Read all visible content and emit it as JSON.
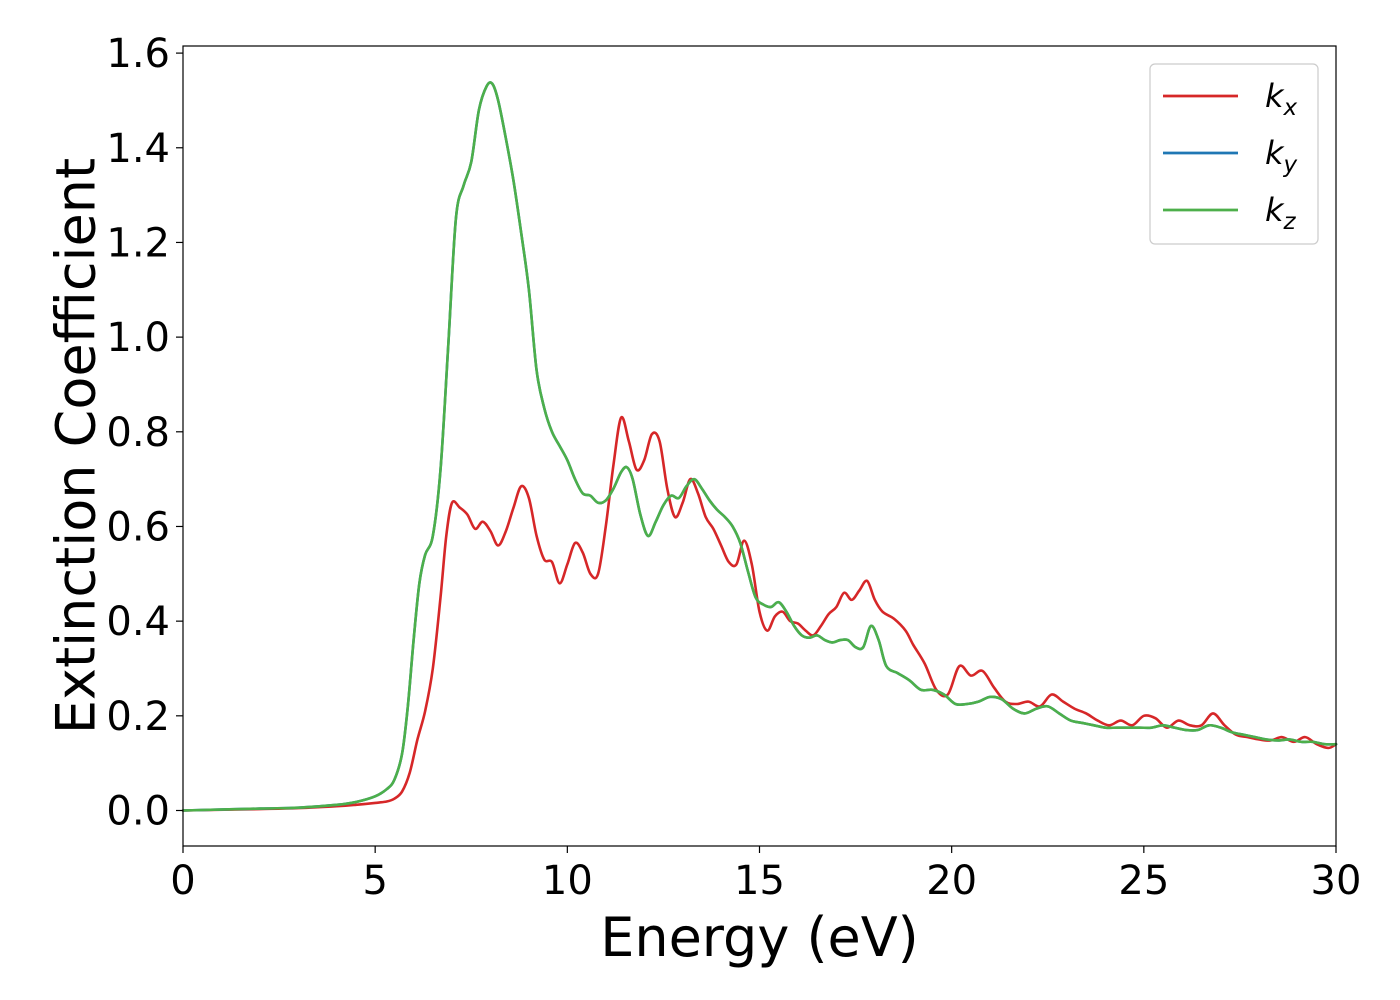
{
  "chart_data": {
    "type": "line",
    "title": "",
    "xlabel": "Energy (eV)",
    "ylabel": "Extinction Coefficient",
    "xlim": [
      0,
      30
    ],
    "ylim": [
      -0.075,
      1.615
    ],
    "xticks": [
      0,
      5,
      10,
      15,
      20,
      25,
      30
    ],
    "xtick_labels": [
      "0",
      "5",
      "10",
      "15",
      "20",
      "25",
      "30"
    ],
    "yticks": [
      0.0,
      0.2,
      0.4,
      0.6,
      0.8,
      1.0,
      1.2,
      1.4,
      1.6
    ],
    "ytick_labels": [
      "0.0",
      "0.2",
      "0.4",
      "0.6",
      "0.8",
      "1.0",
      "1.2",
      "1.4",
      "1.6"
    ],
    "grid": false,
    "legend_position": "top-right",
    "series": [
      {
        "name": "k_x",
        "label_base": "k",
        "label_sub": "x",
        "color": "#d62728",
        "x": [
          0,
          2,
          3,
          4,
          4.5,
          5,
          5.3,
          5.5,
          5.7,
          5.9,
          6.1,
          6.3,
          6.5,
          6.7,
          6.85,
          7.0,
          7.2,
          7.4,
          7.6,
          7.8,
          8.0,
          8.2,
          8.4,
          8.6,
          8.8,
          9.0,
          9.2,
          9.4,
          9.6,
          9.8,
          10.0,
          10.2,
          10.4,
          10.6,
          10.8,
          11.0,
          11.2,
          11.4,
          11.6,
          11.8,
          12.0,
          12.2,
          12.4,
          12.6,
          12.8,
          13.0,
          13.2,
          13.4,
          13.6,
          13.8,
          14.0,
          14.2,
          14.4,
          14.6,
          14.8,
          15.0,
          15.2,
          15.4,
          15.6,
          15.8,
          16.0,
          16.2,
          16.4,
          16.6,
          16.8,
          17.0,
          17.2,
          17.4,
          17.6,
          17.8,
          18.0,
          18.2,
          18.5,
          18.8,
          19.0,
          19.3,
          19.6,
          19.9,
          20.2,
          20.5,
          20.8,
          21.1,
          21.4,
          21.7,
          22.0,
          22.3,
          22.6,
          22.9,
          23.2,
          23.5,
          23.8,
          24.1,
          24.4,
          24.7,
          25.0,
          25.3,
          25.6,
          25.9,
          26.2,
          26.5,
          26.8,
          27.1,
          27.4,
          27.7,
          28.0,
          28.3,
          28.6,
          28.9,
          29.2,
          29.5,
          29.8,
          30
        ],
        "y": [
          0.0,
          0.003,
          0.005,
          0.009,
          0.012,
          0.016,
          0.019,
          0.025,
          0.04,
          0.08,
          0.15,
          0.21,
          0.3,
          0.45,
          0.58,
          0.65,
          0.64,
          0.625,
          0.595,
          0.61,
          0.59,
          0.56,
          0.59,
          0.64,
          0.685,
          0.66,
          0.58,
          0.53,
          0.525,
          0.48,
          0.52,
          0.565,
          0.545,
          0.5,
          0.5,
          0.6,
          0.73,
          0.83,
          0.78,
          0.72,
          0.74,
          0.795,
          0.78,
          0.68,
          0.62,
          0.65,
          0.7,
          0.67,
          0.62,
          0.595,
          0.56,
          0.525,
          0.52,
          0.57,
          0.52,
          0.42,
          0.38,
          0.41,
          0.42,
          0.4,
          0.395,
          0.38,
          0.37,
          0.39,
          0.415,
          0.43,
          0.46,
          0.445,
          0.465,
          0.485,
          0.445,
          0.42,
          0.405,
          0.38,
          0.35,
          0.31,
          0.255,
          0.245,
          0.305,
          0.285,
          0.295,
          0.26,
          0.23,
          0.225,
          0.23,
          0.22,
          0.245,
          0.23,
          0.215,
          0.205,
          0.19,
          0.18,
          0.19,
          0.18,
          0.2,
          0.195,
          0.175,
          0.19,
          0.18,
          0.18,
          0.205,
          0.18,
          0.16,
          0.155,
          0.15,
          0.148,
          0.155,
          0.145,
          0.155,
          0.14,
          0.132,
          0.14
        ]
      },
      {
        "name": "k_y",
        "label_base": "k",
        "label_sub": "y",
        "color": "#1f77b4",
        "x": [
          0,
          2,
          3,
          4,
          4.5,
          5,
          5.3,
          5.5,
          5.7,
          5.85,
          6.0,
          6.15,
          6.3,
          6.5,
          6.7,
          6.9,
          7.1,
          7.3,
          7.5,
          7.7,
          7.9,
          8.05,
          8.2,
          8.4,
          8.6,
          8.8,
          9.0,
          9.2,
          9.4,
          9.6,
          9.8,
          10.0,
          10.2,
          10.4,
          10.6,
          10.8,
          11.0,
          11.2,
          11.4,
          11.55,
          11.7,
          11.9,
          12.1,
          12.3,
          12.5,
          12.7,
          12.9,
          13.1,
          13.3,
          13.5,
          13.7,
          13.9,
          14.1,
          14.3,
          14.5,
          14.7,
          14.9,
          15.1,
          15.3,
          15.5,
          15.7,
          15.9,
          16.1,
          16.3,
          16.5,
          16.7,
          16.9,
          17.1,
          17.3,
          17.5,
          17.7,
          17.9,
          18.1,
          18.3,
          18.6,
          18.9,
          19.2,
          19.5,
          19.8,
          20.1,
          20.4,
          20.7,
          21.0,
          21.3,
          21.6,
          21.9,
          22.2,
          22.5,
          22.8,
          23.1,
          23.4,
          23.7,
          24.0,
          24.3,
          24.6,
          24.9,
          25.2,
          25.5,
          25.8,
          26.1,
          26.4,
          26.7,
          27.0,
          27.3,
          27.6,
          27.9,
          28.2,
          28.5,
          28.8,
          29.1,
          29.4,
          29.7,
          30
        ],
        "y": [
          0.0,
          0.004,
          0.006,
          0.012,
          0.018,
          0.03,
          0.045,
          0.065,
          0.12,
          0.22,
          0.36,
          0.48,
          0.54,
          0.58,
          0.72,
          0.98,
          1.25,
          1.32,
          1.37,
          1.48,
          1.53,
          1.535,
          1.5,
          1.42,
          1.33,
          1.22,
          1.1,
          0.93,
          0.85,
          0.8,
          0.77,
          0.74,
          0.7,
          0.67,
          0.665,
          0.65,
          0.655,
          0.68,
          0.715,
          0.725,
          0.7,
          0.625,
          0.58,
          0.61,
          0.645,
          0.665,
          0.66,
          0.685,
          0.7,
          0.68,
          0.655,
          0.635,
          0.62,
          0.6,
          0.565,
          0.505,
          0.45,
          0.435,
          0.43,
          0.44,
          0.42,
          0.39,
          0.37,
          0.365,
          0.37,
          0.36,
          0.355,
          0.36,
          0.36,
          0.345,
          0.345,
          0.39,
          0.36,
          0.305,
          0.29,
          0.275,
          0.255,
          0.255,
          0.245,
          0.225,
          0.225,
          0.23,
          0.24,
          0.235,
          0.215,
          0.205,
          0.215,
          0.22,
          0.205,
          0.19,
          0.185,
          0.18,
          0.175,
          0.175,
          0.175,
          0.175,
          0.175,
          0.18,
          0.175,
          0.17,
          0.17,
          0.18,
          0.175,
          0.165,
          0.16,
          0.155,
          0.15,
          0.148,
          0.15,
          0.145,
          0.145,
          0.14,
          0.14
        ]
      },
      {
        "name": "k_z",
        "label_base": "k",
        "label_sub": "z",
        "color": "#4daf4a",
        "x": [
          0,
          2,
          3,
          4,
          4.5,
          5,
          5.3,
          5.5,
          5.7,
          5.85,
          6.0,
          6.15,
          6.3,
          6.5,
          6.7,
          6.9,
          7.1,
          7.3,
          7.5,
          7.7,
          7.9,
          8.05,
          8.2,
          8.4,
          8.6,
          8.8,
          9.0,
          9.2,
          9.4,
          9.6,
          9.8,
          10.0,
          10.2,
          10.4,
          10.6,
          10.8,
          11.0,
          11.2,
          11.4,
          11.55,
          11.7,
          11.9,
          12.1,
          12.3,
          12.5,
          12.7,
          12.9,
          13.1,
          13.3,
          13.5,
          13.7,
          13.9,
          14.1,
          14.3,
          14.5,
          14.7,
          14.9,
          15.1,
          15.3,
          15.5,
          15.7,
          15.9,
          16.1,
          16.3,
          16.5,
          16.7,
          16.9,
          17.1,
          17.3,
          17.5,
          17.7,
          17.9,
          18.1,
          18.3,
          18.6,
          18.9,
          19.2,
          19.5,
          19.8,
          20.1,
          20.4,
          20.7,
          21.0,
          21.3,
          21.6,
          21.9,
          22.2,
          22.5,
          22.8,
          23.1,
          23.4,
          23.7,
          24.0,
          24.3,
          24.6,
          24.9,
          25.2,
          25.5,
          25.8,
          26.1,
          26.4,
          26.7,
          27.0,
          27.3,
          27.6,
          27.9,
          28.2,
          28.5,
          28.8,
          29.1,
          29.4,
          29.7,
          30
        ],
        "y": [
          0.0,
          0.004,
          0.006,
          0.012,
          0.018,
          0.03,
          0.045,
          0.065,
          0.12,
          0.22,
          0.36,
          0.48,
          0.54,
          0.58,
          0.72,
          0.98,
          1.25,
          1.32,
          1.37,
          1.48,
          1.53,
          1.535,
          1.5,
          1.42,
          1.33,
          1.22,
          1.1,
          0.93,
          0.85,
          0.8,
          0.77,
          0.74,
          0.7,
          0.67,
          0.665,
          0.65,
          0.655,
          0.68,
          0.715,
          0.725,
          0.7,
          0.625,
          0.58,
          0.61,
          0.645,
          0.665,
          0.66,
          0.685,
          0.7,
          0.68,
          0.655,
          0.635,
          0.62,
          0.6,
          0.565,
          0.505,
          0.45,
          0.435,
          0.43,
          0.44,
          0.42,
          0.39,
          0.37,
          0.365,
          0.37,
          0.36,
          0.355,
          0.36,
          0.36,
          0.345,
          0.345,
          0.39,
          0.36,
          0.305,
          0.29,
          0.275,
          0.255,
          0.255,
          0.245,
          0.225,
          0.225,
          0.23,
          0.24,
          0.235,
          0.215,
          0.205,
          0.215,
          0.22,
          0.205,
          0.19,
          0.185,
          0.18,
          0.175,
          0.175,
          0.175,
          0.175,
          0.175,
          0.18,
          0.175,
          0.17,
          0.17,
          0.18,
          0.175,
          0.165,
          0.16,
          0.155,
          0.15,
          0.148,
          0.15,
          0.145,
          0.145,
          0.14,
          0.14
        ]
      }
    ]
  }
}
